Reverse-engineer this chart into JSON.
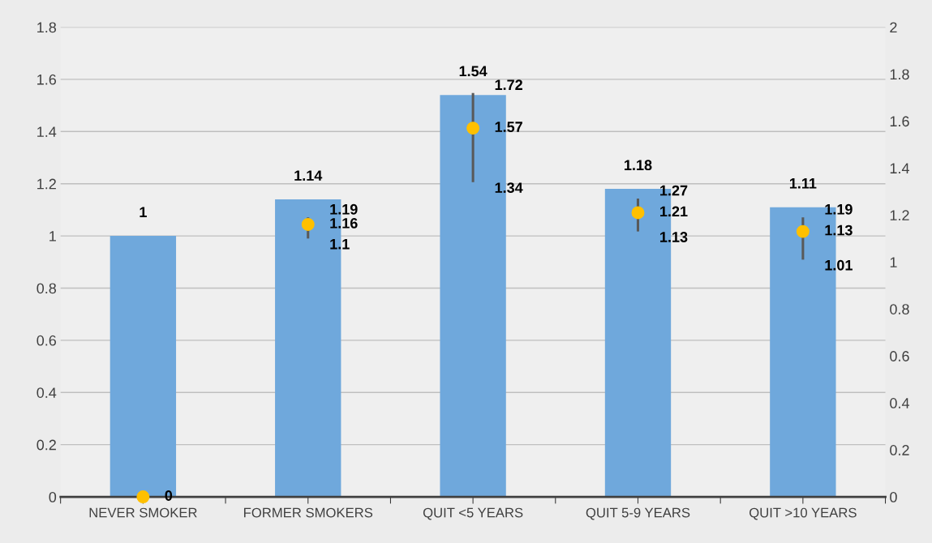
{
  "chart_data": {
    "type": "bar",
    "categories": [
      "NEVER SMOKER",
      "FORMER SMOKERS",
      "QUIT <5 YEARS",
      "QUIT 5-9 YEARS",
      "QUIT >10 YEARS"
    ],
    "series": [
      {
        "color": "#6fa8dc",
        "values": [
          1,
          1.14,
          1.54,
          1.18,
          1.11
        ],
        "value_labels": [
          "1",
          "1.14",
          "1.54",
          "1.18",
          "1.11"
        ]
      },
      {
        "type": "scatter",
        "axis": "y2",
        "color": "#ffc000",
        "values": [
          0,
          1.16,
          1.57,
          1.21,
          1.13
        ],
        "errors": [
          null,
          [
            1.1,
            1.19
          ],
          [
            1.34,
            1.72
          ],
          [
            1.13,
            1.27
          ],
          [
            1.01,
            1.19
          ]
        ],
        "value_labels": [
          "0",
          "1.16",
          "1.57",
          "1.21",
          "1.13"
        ]
      }
    ],
    "annotations": [
      "1.1",
      "1.19",
      "1.34",
      "1.72",
      "1.13",
      "1.27",
      "1.01",
      "1.19"
    ],
    "ylim": [
      0,
      1.8
    ],
    "yticks": [
      0,
      0.2,
      0.4,
      0.6,
      0.8,
      1,
      1.2,
      1.4,
      1.6,
      1.8
    ],
    "y2lim": [
      0,
      2
    ],
    "y2ticks": [
      0,
      0.2,
      0.4,
      0.6,
      0.8,
      1,
      1.2,
      1.4,
      1.6,
      1.8,
      2
    ],
    "grid": "y",
    "marker": "circle",
    "legend": false
  }
}
